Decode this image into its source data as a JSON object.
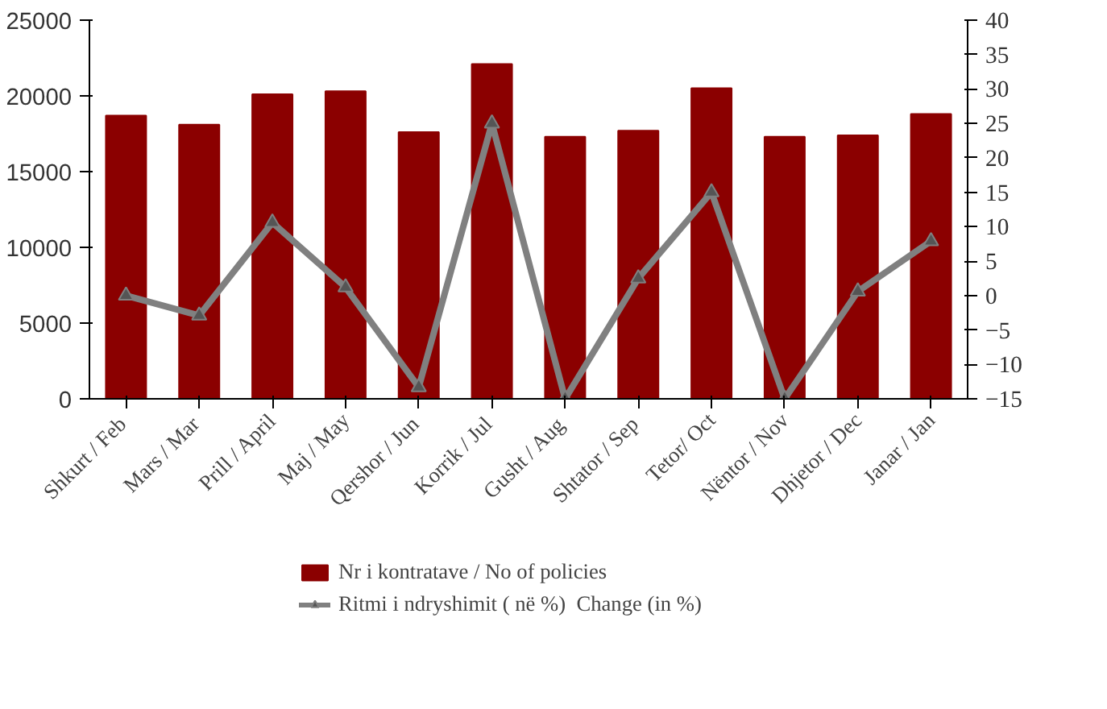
{
  "chart_data": {
    "type": "bar",
    "categories": [
      "Shkurt  / Feb",
      "Mars  / Mar",
      "Prill / April",
      "Maj / May",
      "Qershor  / Jun",
      "Korrik  / Jul",
      "Gusht  / Aug",
      "Shtator  / Sep",
      "Tetor/ Oct",
      "Nëntor / Nov",
      "Dhjetor / Dec",
      "Janar / Jan"
    ],
    "series": [
      {
        "name": "Nr i kontratave / No of policies",
        "color": "#8b0000",
        "values": [
          18700,
          18100,
          20100,
          20300,
          17600,
          22100,
          17300,
          17700,
          20500,
          17300,
          17400,
          18800
        ]
      },
      {
        "name": "Ritmi i ndryshimit ( në %)  Change (in %)",
        "type": "line",
        "axis": "y2",
        "color": "#808080",
        "marker": "triangle",
        "values": [
          0,
          -2.9,
          10.6,
          1.2,
          -13.3,
          25,
          -15,
          2.5,
          15,
          -15,
          0.6,
          7.9
        ]
      }
    ],
    "ylim": [
      0,
      25000
    ],
    "yticks": [
      0,
      5000,
      10000,
      15000,
      20000,
      25000
    ],
    "y2lim": [
      -15,
      40
    ],
    "y2ticks": [
      -15,
      -10,
      -5,
      0,
      5,
      10,
      15,
      20,
      25,
      30,
      35,
      40
    ],
    "grid": false,
    "legend": "bottom"
  }
}
